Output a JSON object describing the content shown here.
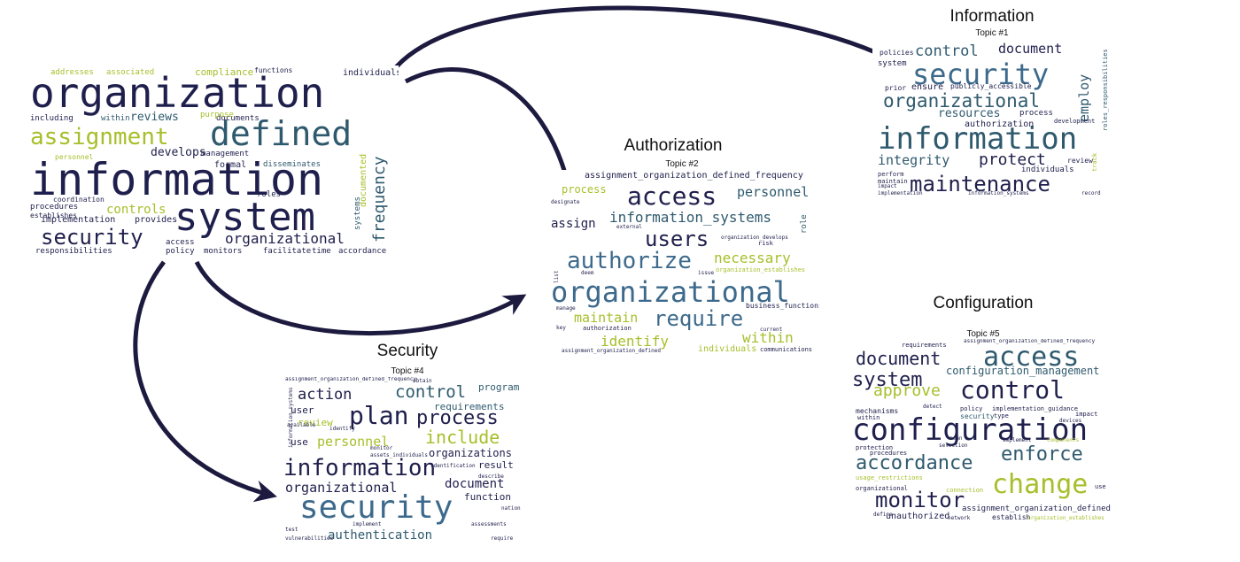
{
  "colors": {
    "dark": "#1f1f4d",
    "teal": "#2f5a6e",
    "green": "#a6bf2a",
    "blue": "#3d6a8c",
    "arrow": "#1d1a3f"
  },
  "clouds": [
    {
      "id": "main",
      "title": "",
      "subtitle": "",
      "words": [
        {
          "t": "organization",
          "c": "dark"
        },
        {
          "t": "information",
          "c": "dark"
        },
        {
          "t": "system",
          "c": "dark"
        },
        {
          "t": "defined",
          "c": "teal"
        },
        {
          "t": "assignment",
          "c": "green"
        },
        {
          "t": "security",
          "c": "dark"
        },
        {
          "t": "frequency",
          "c": "teal"
        },
        {
          "t": "organizational",
          "c": "dark"
        },
        {
          "t": "reviews",
          "c": "teal"
        },
        {
          "t": "develops",
          "c": "dark"
        },
        {
          "t": "controls",
          "c": "green"
        },
        {
          "t": "addresses",
          "c": "green"
        },
        {
          "t": "associated",
          "c": "green"
        },
        {
          "t": "compliance",
          "c": "green"
        },
        {
          "t": "individuals",
          "c": "dark"
        },
        {
          "t": "including",
          "c": "dark"
        },
        {
          "t": "within",
          "c": "teal"
        },
        {
          "t": "documents",
          "c": "dark"
        },
        {
          "t": "management",
          "c": "dark"
        },
        {
          "t": "formal",
          "c": "dark"
        },
        {
          "t": "disseminates",
          "c": "teal"
        },
        {
          "t": "roles",
          "c": "dark"
        },
        {
          "t": "purpose",
          "c": "green"
        },
        {
          "t": "procedures",
          "c": "dark"
        },
        {
          "t": "implementation",
          "c": "dark"
        },
        {
          "t": "provides",
          "c": "dark"
        },
        {
          "t": "establishes",
          "c": "dark"
        },
        {
          "t": "coordination",
          "c": "dark"
        },
        {
          "t": "responsibilities",
          "c": "dark"
        },
        {
          "t": "access",
          "c": "dark"
        },
        {
          "t": "policy",
          "c": "dark"
        },
        {
          "t": "monitors",
          "c": "dark"
        },
        {
          "t": "facilitate",
          "c": "dark"
        },
        {
          "t": "time",
          "c": "dark"
        },
        {
          "t": "accordance",
          "c": "dark"
        },
        {
          "t": "functions",
          "c": "dark"
        },
        {
          "t": "documented",
          "c": "green"
        },
        {
          "t": "personnel",
          "c": "green"
        },
        {
          "t": "systems",
          "c": "teal"
        }
      ]
    },
    {
      "id": "information",
      "title": "Information",
      "subtitle": "Topic #1",
      "words": [
        {
          "t": "security",
          "c": "blue"
        },
        {
          "t": "information",
          "c": "teal"
        },
        {
          "t": "organizational",
          "c": "teal"
        },
        {
          "t": "maintenance",
          "c": "dark"
        },
        {
          "t": "control",
          "c": "teal"
        },
        {
          "t": "document",
          "c": "dark"
        },
        {
          "t": "protect",
          "c": "dark"
        },
        {
          "t": "integrity",
          "c": "teal"
        },
        {
          "t": "resources",
          "c": "teal"
        },
        {
          "t": "employ",
          "c": "teal"
        },
        {
          "t": "ensure",
          "c": "dark"
        },
        {
          "t": "publicly_accessible",
          "c": "dark"
        },
        {
          "t": "process",
          "c": "dark"
        },
        {
          "t": "authorization",
          "c": "dark"
        },
        {
          "t": "system",
          "c": "dark"
        },
        {
          "t": "policies",
          "c": "dark"
        },
        {
          "t": "individuals",
          "c": "dark"
        },
        {
          "t": "development",
          "c": "dark"
        },
        {
          "t": "roles_responsibilities",
          "c": "teal"
        },
        {
          "t": "review",
          "c": "dark"
        },
        {
          "t": "maintain",
          "c": "dark"
        },
        {
          "t": "perform",
          "c": "dark"
        },
        {
          "t": "prior",
          "c": "dark"
        },
        {
          "t": "implementation",
          "c": "dark"
        },
        {
          "t": "information_systems",
          "c": "dark"
        },
        {
          "t": "record",
          "c": "dark"
        },
        {
          "t": "impact",
          "c": "dark"
        },
        {
          "t": "track",
          "c": "green"
        }
      ]
    },
    {
      "id": "authorization",
      "title": "Authorization",
      "subtitle": "Topic #2",
      "words": [
        {
          "t": "assignment_organization_defined_frequency",
          "c": "dark"
        },
        {
          "t": "access",
          "c": "dark"
        },
        {
          "t": "personnel",
          "c": "teal"
        },
        {
          "t": "process",
          "c": "green"
        },
        {
          "t": "information_systems",
          "c": "teal"
        },
        {
          "t": "assign",
          "c": "dark"
        },
        {
          "t": "users",
          "c": "dark"
        },
        {
          "t": "authorize",
          "c": "blue"
        },
        {
          "t": "necessary",
          "c": "green"
        },
        {
          "t": "organizational",
          "c": "blue"
        },
        {
          "t": "maintain",
          "c": "green"
        },
        {
          "t": "require",
          "c": "blue"
        },
        {
          "t": "within",
          "c": "green"
        },
        {
          "t": "identify",
          "c": "green"
        },
        {
          "t": "individuals",
          "c": "green"
        },
        {
          "t": "communications",
          "c": "dark"
        },
        {
          "t": "organization_establishes",
          "c": "green"
        },
        {
          "t": "business_functions",
          "c": "dark"
        },
        {
          "t": "authorization",
          "c": "dark"
        },
        {
          "t": "assignment_organization_defined",
          "c": "dark"
        },
        {
          "t": "deem",
          "c": "dark"
        },
        {
          "t": "designate",
          "c": "dark"
        },
        {
          "t": "external",
          "c": "dark"
        },
        {
          "t": "issue",
          "c": "dark"
        },
        {
          "t": "risk",
          "c": "dark"
        },
        {
          "t": "role",
          "c": "teal"
        },
        {
          "t": "current",
          "c": "dark"
        },
        {
          "t": "key",
          "c": "dark"
        },
        {
          "t": "manage",
          "c": "dark"
        },
        {
          "t": "list",
          "c": "dark"
        },
        {
          "t": "organization_develops",
          "c": "dark"
        }
      ]
    },
    {
      "id": "security",
      "title": "Security",
      "subtitle": "Topic #4",
      "words": [
        {
          "t": "security",
          "c": "blue"
        },
        {
          "t": "information",
          "c": "dark"
        },
        {
          "t": "plan",
          "c": "dark"
        },
        {
          "t": "process",
          "c": "dark"
        },
        {
          "t": "control",
          "c": "teal"
        },
        {
          "t": "include",
          "c": "green"
        },
        {
          "t": "action",
          "c": "dark"
        },
        {
          "t": "program",
          "c": "teal"
        },
        {
          "t": "requirements",
          "c": "teal"
        },
        {
          "t": "personnel",
          "c": "green"
        },
        {
          "t": "organizations",
          "c": "dark"
        },
        {
          "t": "organizational",
          "c": "dark"
        },
        {
          "t": "document",
          "c": "dark"
        },
        {
          "t": "authentication",
          "c": "teal"
        },
        {
          "t": "result",
          "c": "dark"
        },
        {
          "t": "function",
          "c": "dark"
        },
        {
          "t": "user",
          "c": "dark"
        },
        {
          "t": "review",
          "c": "green"
        },
        {
          "t": "use",
          "c": "dark"
        },
        {
          "t": "assignment_organization_defined_frequency",
          "c": "dark"
        },
        {
          "t": "monitor",
          "c": "dark"
        },
        {
          "t": "identification",
          "c": "dark"
        },
        {
          "t": "assets_individuals",
          "c": "dark"
        },
        {
          "t": "vulnerabilities",
          "c": "dark"
        },
        {
          "t": "test",
          "c": "dark"
        },
        {
          "t": "obtain",
          "c": "dark"
        },
        {
          "t": "available",
          "c": "dark"
        },
        {
          "t": "identify",
          "c": "dark"
        },
        {
          "t": "describe",
          "c": "dark"
        },
        {
          "t": "nation",
          "c": "dark"
        },
        {
          "t": "assessments",
          "c": "dark"
        },
        {
          "t": "require",
          "c": "dark"
        },
        {
          "t": "information_systems",
          "c": "dark"
        },
        {
          "t": "implement",
          "c": "dark"
        }
      ]
    },
    {
      "id": "configuration",
      "title": "Configuration",
      "subtitle": "Topic #5",
      "words": [
        {
          "t": "access",
          "c": "teal"
        },
        {
          "t": "document",
          "c": "dark"
        },
        {
          "t": "system",
          "c": "dark"
        },
        {
          "t": "configuration_management",
          "c": "teal"
        },
        {
          "t": "approve",
          "c": "green"
        },
        {
          "t": "control",
          "c": "dark"
        },
        {
          "t": "configuration",
          "c": "dark"
        },
        {
          "t": "enforce",
          "c": "teal"
        },
        {
          "t": "accordance",
          "c": "teal"
        },
        {
          "t": "change",
          "c": "green"
        },
        {
          "t": "monitor",
          "c": "dark"
        },
        {
          "t": "assignment_organization_defined",
          "c": "dark"
        },
        {
          "t": "unauthorized",
          "c": "dark"
        },
        {
          "t": "requirements",
          "c": "dark"
        },
        {
          "t": "mechanisms",
          "c": "dark"
        },
        {
          "t": "detect",
          "c": "dark"
        },
        {
          "t": "policy",
          "c": "dark"
        },
        {
          "t": "implementation_guidance",
          "c": "dark"
        },
        {
          "t": "within",
          "c": "dark"
        },
        {
          "t": "protection",
          "c": "dark"
        },
        {
          "t": "procedures",
          "c": "dark"
        },
        {
          "t": "organizational",
          "c": "dark"
        },
        {
          "t": "devices",
          "c": "dark"
        },
        {
          "t": "impact",
          "c": "dark"
        },
        {
          "t": "components",
          "c": "green"
        },
        {
          "t": "usage_restrictions",
          "c": "green"
        },
        {
          "t": "connection",
          "c": "green"
        },
        {
          "t": "use",
          "c": "dark"
        },
        {
          "t": "establish",
          "c": "dark"
        },
        {
          "t": "network",
          "c": "dark"
        },
        {
          "t": "organization_establishes",
          "c": "green"
        },
        {
          "t": "define",
          "c": "dark"
        },
        {
          "t": "security",
          "c": "teal"
        },
        {
          "t": "type",
          "c": "dark"
        },
        {
          "t": "mean",
          "c": "dark"
        },
        {
          "t": "implement",
          "c": "dark"
        },
        {
          "t": "selection",
          "c": "dark"
        },
        {
          "t": "assignment_organization_defined_frequency",
          "c": "dark"
        }
      ]
    }
  ]
}
